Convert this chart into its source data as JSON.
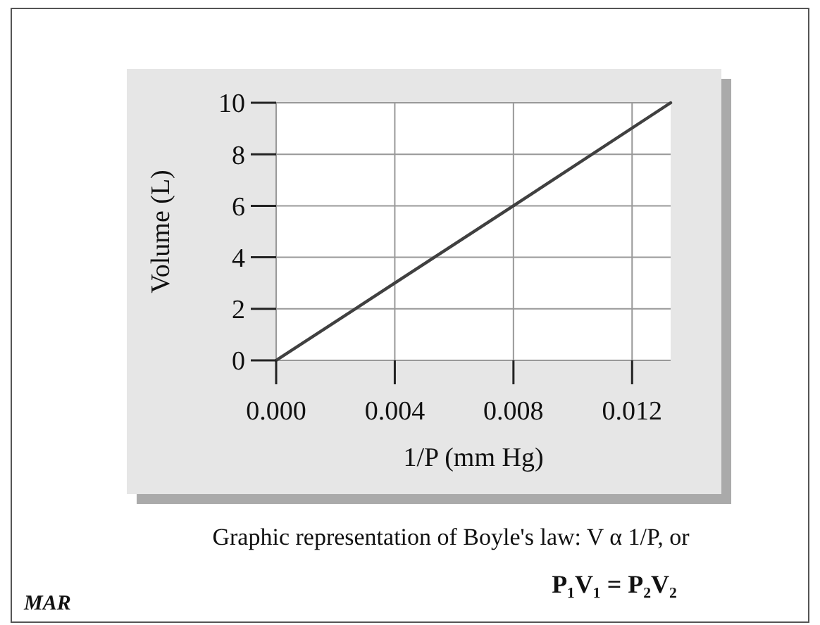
{
  "chart_data": {
    "type": "line",
    "xlabel": "1/P (mm Hg)",
    "ylabel": "Volume (L)",
    "x": [
      0,
      0.004,
      0.008,
      0.0133
    ],
    "series": [
      {
        "color": "#404040",
        "values": [
          0,
          3,
          6,
          10
        ]
      }
    ],
    "xlim": [
      0,
      0.0133
    ],
    "ylim": [
      0,
      10
    ],
    "xticks": [
      {
        "value": 0,
        "label": "0.000"
      },
      0.004,
      0.008,
      0.012
    ],
    "yticks": [
      0,
      2,
      4,
      6,
      8,
      10
    ],
    "grid": true,
    "marker": "none",
    "line_style": "solid",
    "annotations": [
      "Graphic representation of Boyle's law: V α 1/P, or",
      "P₁V₁ = P₂V₂",
      "MAR"
    ]
  }
}
